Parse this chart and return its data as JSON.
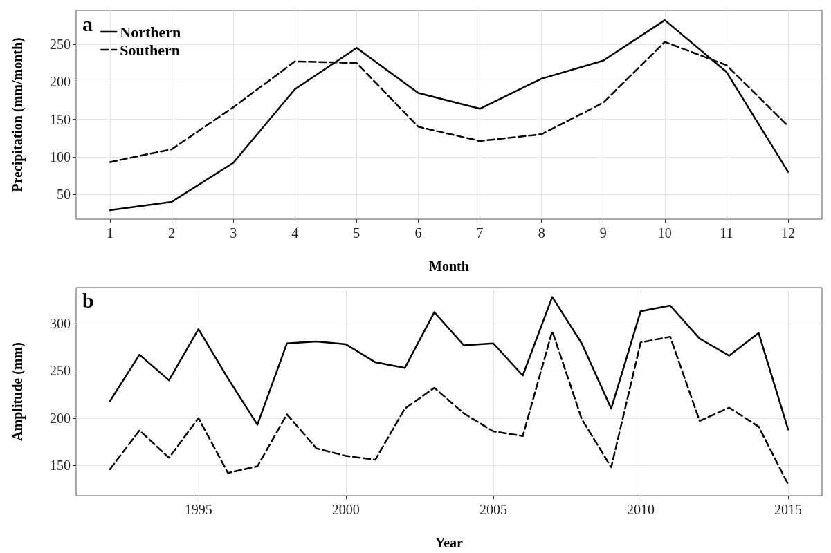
{
  "chart_data": [
    {
      "type": "line",
      "title": "a",
      "xlabel": "Month",
      "ylabel": "Precipitation (mm/month)",
      "x": [
        1,
        2,
        3,
        4,
        5,
        6,
        7,
        8,
        9,
        10,
        11,
        12
      ],
      "xlim": [
        0.45,
        12.55
      ],
      "xticks": [
        1,
        2,
        3,
        4,
        5,
        6,
        7,
        8,
        9,
        10,
        11,
        12
      ],
      "ylim": [
        17,
        295
      ],
      "yticks": [
        50,
        100,
        150,
        200,
        250
      ],
      "grid": true,
      "legend": "top left",
      "marker": "none",
      "series": [
        {
          "name": "Northern",
          "color": "#000000",
          "line_style": "solid",
          "values": [
            29,
            40,
            92,
            190,
            245,
            185,
            164,
            204,
            228,
            282,
            213,
            80
          ]
        },
        {
          "name": "Southern",
          "color": "#000000",
          "line_style": "dashed",
          "values": [
            93,
            110,
            166,
            227,
            225,
            140,
            121,
            130,
            172,
            253,
            222,
            141
          ]
        }
      ]
    },
    {
      "type": "line",
      "title": "b",
      "xlabel": "Year",
      "ylabel": "Amplitude (mm)",
      "x": [
        1992,
        1993,
        1994,
        1995,
        1996,
        1997,
        1998,
        1999,
        2000,
        2001,
        2002,
        2003,
        2004,
        2005,
        2006,
        2007,
        2008,
        2009,
        2010,
        2011,
        2012,
        2013,
        2014,
        2015
      ],
      "xlim": [
        1990.85,
        2016.15
      ],
      "xticks": [
        1995,
        2000,
        2005,
        2010,
        2015
      ],
      "ylim": [
        118,
        338
      ],
      "yticks": [
        150,
        200,
        250,
        300
      ],
      "grid": true,
      "marker": "none",
      "series": [
        {
          "color": "#000000",
          "line_style": "solid",
          "values": [
            218,
            267,
            240,
            294,
            242,
            193,
            279,
            281,
            278,
            259,
            253,
            312,
            277,
            279,
            245,
            328,
            279,
            210,
            313,
            319,
            284,
            266,
            290,
            188
          ]
        },
        {
          "color": "#000000",
          "line_style": "dashed",
          "values": [
            146,
            187,
            158,
            200,
            142,
            149,
            204,
            168,
            160,
            156,
            210,
            232,
            205,
            186,
            181,
            292,
            199,
            148,
            280,
            286,
            197,
            211,
            191,
            130
          ]
        }
      ]
    }
  ]
}
